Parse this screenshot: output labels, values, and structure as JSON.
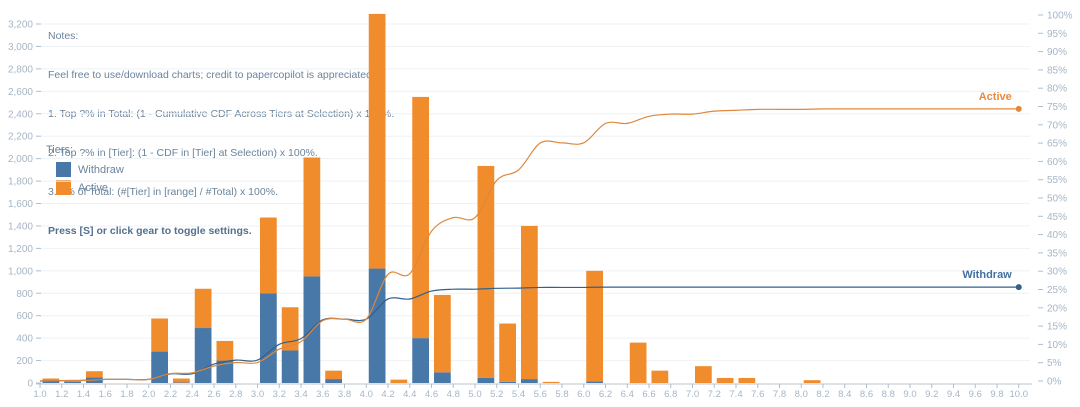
{
  "notes": {
    "title": "Notes:",
    "lines": [
      "Feel free to use/download charts; credit to papercopilot is appreciated",
      "1. Top ?% in Total: (1 - Cumulative CDF Across Tiers at Selection) x 100%.",
      "2. Top ?% in [Tier]: (1 - CDF in [Tier] at Selection) x 100%.",
      "3. ?% of Total: (#[Tier] in [range] / #Total) x 100%."
    ],
    "bold_line": "Press [S] or click gear to toggle settings."
  },
  "legend": {
    "title": "Tiers:",
    "items": [
      {
        "label": "Withdraw",
        "color": "#4878A8"
      },
      {
        "label": "Active",
        "color": "#F08C2B"
      }
    ]
  },
  "chart_data": {
    "type": "bar",
    "subtype": "stacked-histogram-with-cumulative-percent-lines",
    "bin_start": 1.0,
    "bin_width": 0.2,
    "x_tick_labels": [
      "1.0",
      "1.2",
      "1.4",
      "1.6",
      "1.8",
      "2.0",
      "2.2",
      "2.4",
      "2.6",
      "2.8",
      "3.0",
      "3.2",
      "3.4",
      "3.6",
      "3.8",
      "4.0",
      "4.2",
      "4.4",
      "4.6",
      "4.8",
      "5.0",
      "5.2",
      "5.4",
      "5.6",
      "5.8",
      "6.0",
      "6.2",
      "6.4",
      "6.6",
      "6.8",
      "7.0",
      "7.2",
      "7.4",
      "7.6",
      "7.8",
      "8.0",
      "8.2",
      "8.4",
      "8.6",
      "8.8",
      "9.0",
      "9.2",
      "9.4",
      "9.6",
      "9.8",
      "10.0"
    ],
    "series": [
      {
        "name": "Withdraw",
        "bar_color": "#4878A8",
        "line_color": "#33608C",
        "label_color": "#4470A0",
        "values": [
          20,
          12,
          50,
          0,
          0,
          280,
          5,
          490,
          200,
          0,
          800,
          290,
          950,
          35,
          0,
          1020,
          0,
          400,
          95,
          0,
          45,
          10,
          35,
          0,
          0,
          15,
          0,
          0,
          0,
          0,
          0,
          0,
          0,
          0,
          0,
          0,
          0,
          0,
          0,
          0,
          0,
          0,
          0,
          0,
          0
        ]
      },
      {
        "name": "Active",
        "bar_color": "#F08C2B",
        "line_color": "#E0873B",
        "label_color": "#E88B3D",
        "values": [
          20,
          5,
          55,
          0,
          0,
          295,
          35,
          350,
          175,
          0,
          675,
          385,
          1060,
          75,
          0,
          2270,
          30,
          2150,
          690,
          0,
          1890,
          520,
          1365,
          10,
          0,
          985,
          0,
          360,
          110,
          0,
          150,
          45,
          45,
          0,
          0,
          25,
          0,
          0,
          0,
          0,
          0,
          0,
          0,
          0,
          0
        ]
      }
    ],
    "left_axis": {
      "min": 0,
      "max": 3200,
      "step": 200,
      "tick_labels": [
        "0",
        "200",
        "400",
        "600",
        "800",
        "1,000",
        "1,200",
        "1,400",
        "1,600",
        "1,800",
        "2,000",
        "2,200",
        "2,400",
        "2,600",
        "2,800",
        "3,000",
        "3,200"
      ]
    },
    "right_axis": {
      "min": 0,
      "max": 100,
      "step": 5,
      "tick_labels": [
        "0%",
        "5%",
        "10%",
        "15%",
        "20%",
        "25%",
        "30%",
        "35%",
        "40%",
        "45%",
        "50%",
        "55%",
        "60%",
        "65%",
        "70%",
        "75%",
        "80%",
        "85%",
        "90%",
        "95%",
        "100%"
      ]
    },
    "lines_are": "cumulative count share of grand total, percent (right axis)",
    "line_end_values": {
      "Withdraw": 25.6,
      "Active": 74.4
    },
    "grid": "faint horizontal lines every 200",
    "legend_position": "left-middle"
  }
}
